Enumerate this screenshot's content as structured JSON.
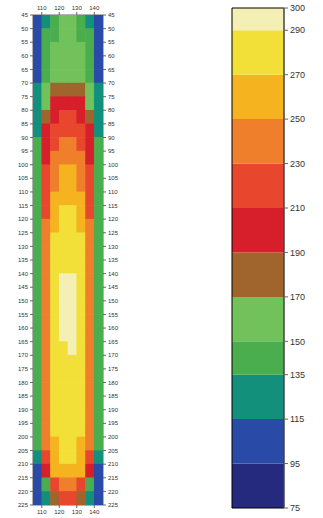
{
  "chart_data": {
    "type": "heatmap",
    "xlim": [
      105,
      145
    ],
    "xticks": [
      110,
      120,
      130,
      140
    ],
    "ylim": [
      45,
      225
    ],
    "yticks": [
      45,
      50,
      55,
      60,
      65,
      70,
      75,
      80,
      85,
      90,
      95,
      100,
      105,
      110,
      115,
      120,
      125,
      130,
      135,
      140,
      145,
      150,
      155,
      160,
      165,
      170,
      175,
      180,
      185,
      190,
      195,
      200,
      205,
      210,
      215,
      220,
      225
    ],
    "cells": {
      "x": [
        107.5,
        112.5,
        117.5,
        122.5,
        127.5,
        132.5,
        137.5,
        142.5
      ],
      "y": [
        47.5,
        52.5,
        57.5,
        62.5,
        67.5,
        72.5,
        77.5,
        82.5,
        87.5,
        92.5,
        97.5,
        102.5,
        107.5,
        112.5,
        117.5,
        122.5,
        127.5,
        132.5,
        137.5,
        142.5,
        147.5,
        152.5,
        157.5,
        162.5,
        167.5,
        172.5,
        177.5,
        182.5,
        187.5,
        192.5,
        197.5,
        202.5,
        207.5,
        212.5,
        217.5,
        222.5
      ],
      "values": [
        [
          100,
          130,
          145,
          150,
          150,
          145,
          130,
          100
        ],
        [
          105,
          135,
          148,
          152,
          152,
          148,
          135,
          105
        ],
        [
          110,
          140,
          150,
          155,
          155,
          150,
          140,
          110
        ],
        [
          110,
          142,
          155,
          160,
          160,
          155,
          142,
          110
        ],
        [
          112,
          145,
          160,
          168,
          168,
          160,
          145,
          112
        ],
        [
          115,
          150,
          175,
          185,
          185,
          175,
          150,
          115
        ],
        [
          120,
          165,
          195,
          205,
          205,
          195,
          165,
          120
        ],
        [
          125,
          185,
          205,
          212,
          212,
          205,
          185,
          125
        ],
        [
          130,
          195,
          212,
          220,
          220,
          212,
          195,
          130
        ],
        [
          135,
          200,
          222,
          232,
          232,
          222,
          200,
          135
        ],
        [
          135,
          205,
          232,
          242,
          242,
          232,
          205,
          135
        ],
        [
          140,
          210,
          240,
          250,
          250,
          240,
          210,
          140
        ],
        [
          140,
          215,
          248,
          258,
          258,
          248,
          215,
          140
        ],
        [
          140,
          220,
          255,
          265,
          265,
          255,
          220,
          140
        ],
        [
          145,
          225,
          262,
          272,
          272,
          262,
          225,
          145
        ],
        [
          145,
          232,
          268,
          278,
          278,
          268,
          232,
          145
        ],
        [
          145,
          238,
          272,
          282,
          282,
          272,
          238,
          145
        ],
        [
          145,
          240,
          275,
          285,
          285,
          275,
          240,
          145
        ],
        [
          145,
          242,
          278,
          288,
          288,
          278,
          242,
          145
        ],
        [
          148,
          245,
          280,
          290,
          291,
          280,
          245,
          148
        ],
        [
          148,
          245,
          281,
          292,
          292,
          282,
          246,
          148
        ],
        [
          148,
          246,
          282,
          293,
          292,
          282,
          246,
          148
        ],
        [
          148,
          246,
          282,
          292,
          291,
          281,
          245,
          148
        ],
        [
          148,
          245,
          281,
          290,
          290,
          281,
          245,
          148
        ],
        [
          148,
          245,
          280,
          289,
          290,
          280,
          244,
          148
        ],
        [
          148,
          244,
          279,
          288,
          288,
          279,
          244,
          148
        ],
        [
          145,
          242,
          278,
          287,
          287,
          278,
          242,
          145
        ],
        [
          145,
          242,
          277,
          286,
          286,
          277,
          242,
          145
        ],
        [
          145,
          240,
          276,
          285,
          285,
          276,
          240,
          145
        ],
        [
          145,
          240,
          275,
          284,
          284,
          275,
          240,
          145
        ],
        [
          140,
          238,
          272,
          280,
          280,
          272,
          238,
          140
        ],
        [
          135,
          232,
          268,
          276,
          276,
          268,
          232,
          135
        ],
        [
          125,
          225,
          262,
          272,
          272,
          262,
          225,
          125
        ],
        [
          110,
          195,
          250,
          265,
          265,
          250,
          195,
          110
        ],
        [
          100,
          140,
          225,
          245,
          245,
          225,
          140,
          100
        ],
        [
          95,
          115,
          180,
          220,
          220,
          180,
          115,
          95
        ]
      ]
    },
    "region": {
      "x": [
        110,
        140
      ],
      "y": [
        124,
        198
      ]
    },
    "colorbar": {
      "range": [
        75,
        300
      ],
      "ticks": [
        75,
        95,
        115,
        135,
        150,
        170,
        190,
        210,
        230,
        250,
        270,
        290,
        300
      ],
      "colors": [
        "#252a7e",
        "#2a4aa8",
        "#13907c",
        "#4aae4e",
        "#72c25c",
        "#a0652c",
        "#d61f2a",
        "#e8472e",
        "#f07f2c",
        "#f5b320",
        "#f2e038",
        "#f4efb4"
      ]
    }
  }
}
